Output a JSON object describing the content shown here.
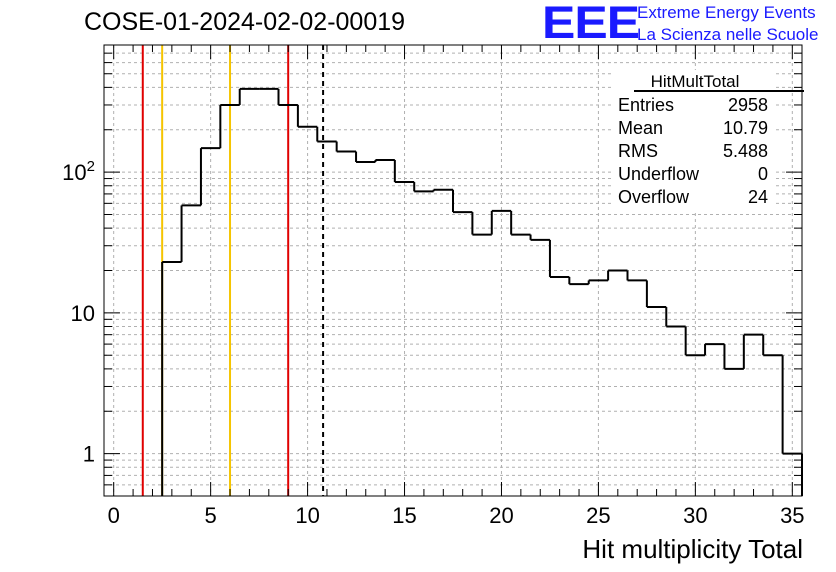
{
  "title": "COSE-01-2024-02-02-00019",
  "logo": {
    "mark": "EEE",
    "line1": "Extreme Energy Events",
    "line2": "La Scienza nelle Scuole",
    "color": "#1a1aff"
  },
  "chart_data": {
    "type": "bar",
    "subtype": "histogram",
    "xlabel": "Hit multiplicity Total",
    "ylabel": "",
    "xlim": [
      -0.5,
      35.5
    ],
    "ylim": [
      0.5,
      800
    ],
    "yscale": "log",
    "grid": true,
    "x_ticks": [
      0,
      5,
      10,
      15,
      20,
      25,
      30,
      35
    ],
    "y_tick_labels": [
      {
        "value": 1,
        "label": "1"
      },
      {
        "value": 10,
        "label": "10"
      },
      {
        "value": 100,
        "label": "10^2"
      }
    ],
    "bin_width": 1,
    "bin_starts": [
      -0.5,
      0.5,
      1.5,
      2.5,
      3.5,
      4.5,
      5.5,
      6.5,
      7.5,
      8.5,
      9.5,
      10.5,
      11.5,
      12.5,
      13.5,
      14.5,
      15.5,
      16.5,
      17.5,
      18.5,
      19.5,
      20.5,
      21.5,
      22.5,
      23.5,
      24.5,
      25.5,
      26.5,
      27.5,
      28.5,
      29.5,
      30.5,
      31.5,
      32.5,
      33.5,
      34.5
    ],
    "values": [
      0,
      0,
      0,
      23,
      58,
      148,
      300,
      390,
      390,
      300,
      210,
      165,
      140,
      118,
      122,
      85,
      73,
      75,
      52,
      36,
      53,
      36,
      33,
      18,
      16,
      17,
      20,
      17,
      11,
      8,
      5,
      6,
      4,
      7,
      5,
      1
    ],
    "vertical_lines": [
      {
        "x": 1.5,
        "color": "#e00000",
        "style": "solid"
      },
      {
        "x": 2.5,
        "color": "#f5c400",
        "style": "solid"
      },
      {
        "x": 6.0,
        "color": "#f5c400",
        "style": "solid"
      },
      {
        "x": 9.0,
        "color": "#e00000",
        "style": "solid"
      },
      {
        "x": 10.8,
        "color": "#000000",
        "style": "dashed"
      }
    ],
    "stats_box": {
      "title": "HitMultTotal",
      "rows": [
        {
          "label": "Entries",
          "value": "2958"
        },
        {
          "label": "Mean",
          "value": "10.79"
        },
        {
          "label": "RMS",
          "value": "5.488"
        },
        {
          "label": "Underflow",
          "value": "0"
        },
        {
          "label": "Overflow",
          "value": "24"
        }
      ]
    }
  }
}
